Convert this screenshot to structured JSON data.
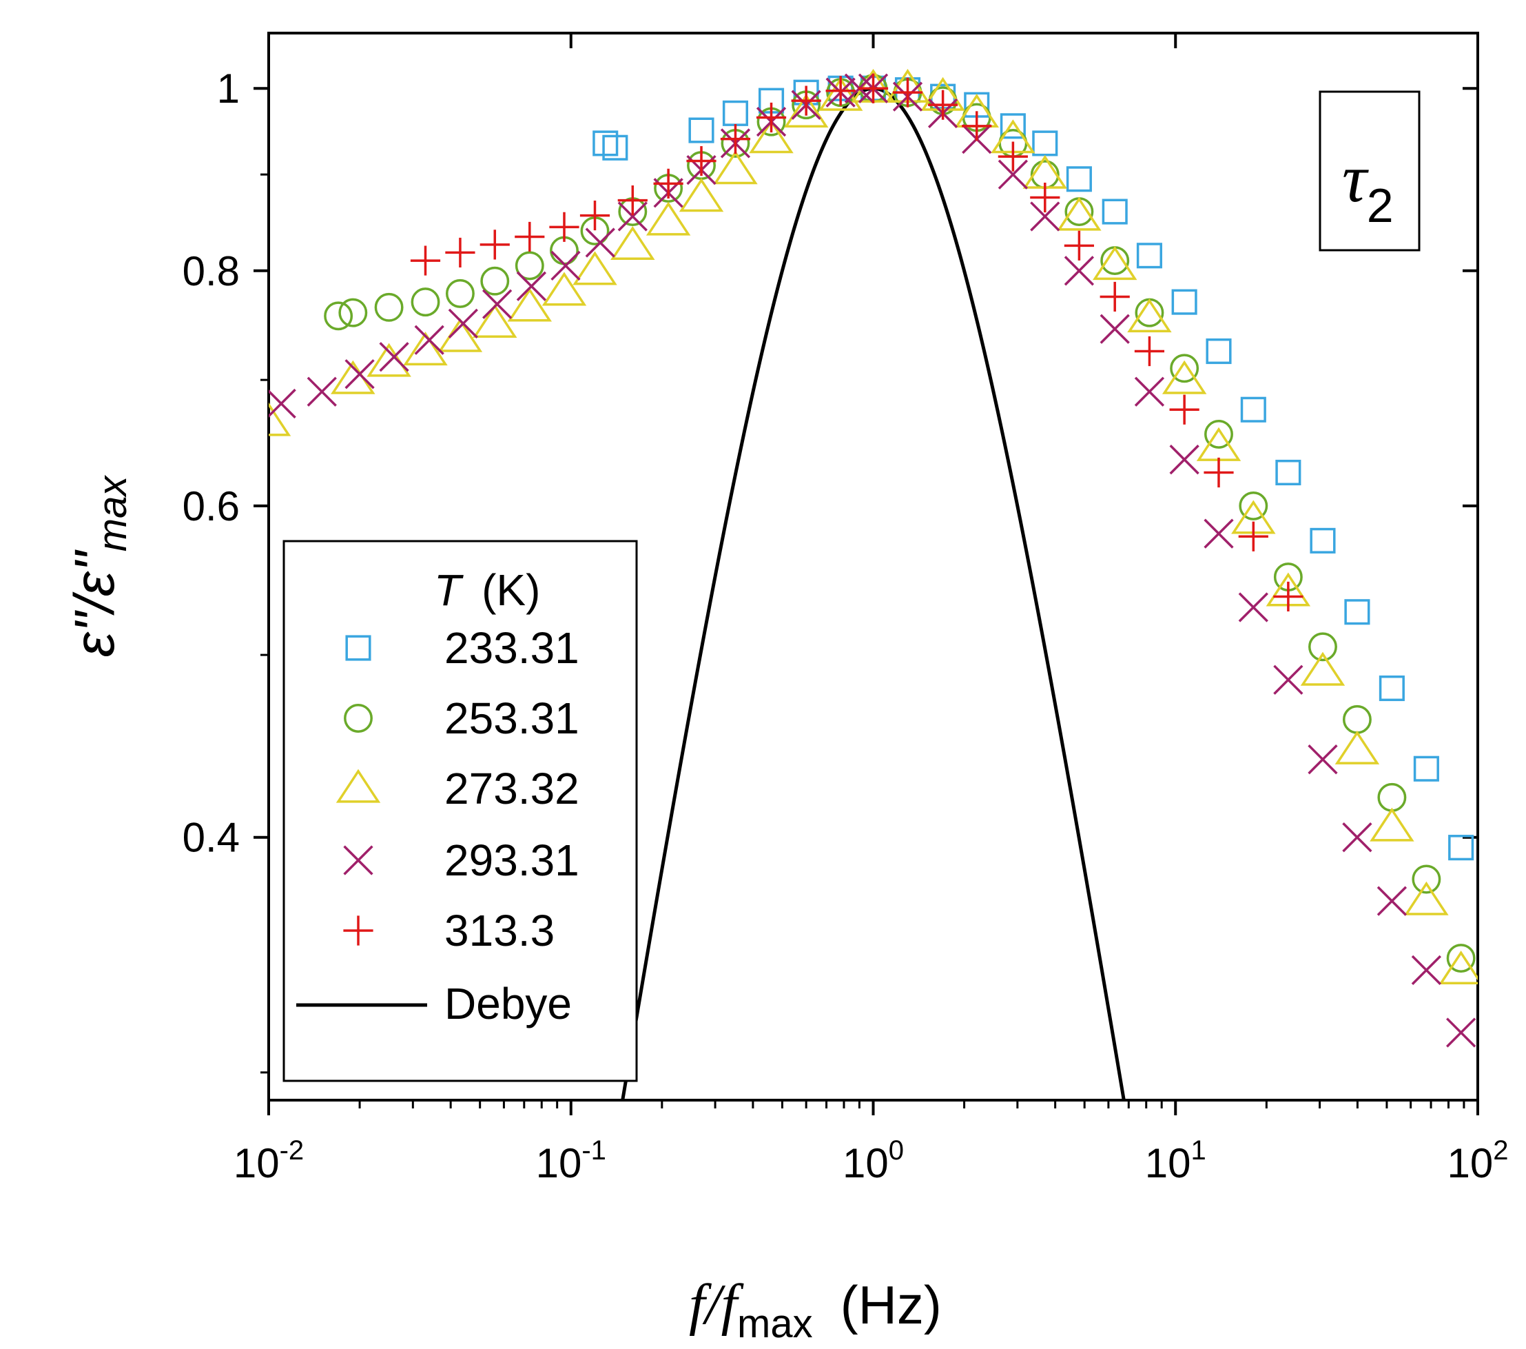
{
  "chart_data": {
    "type": "scatter",
    "title": "",
    "annotation": {
      "symbol": "τ",
      "subscript": "2"
    },
    "xlabel": {
      "main": "f/f",
      "subscript": "max",
      "unit": "(Hz)"
    },
    "ylabel": {
      "numerator": "ε\"",
      "denominator": "ε\"",
      "denominator_subscript": "max",
      "separator": "/"
    },
    "x_scale": "log",
    "y_scale": "log",
    "xlim": [
      0.01,
      100
    ],
    "ylim": [
      0.29,
      1.07
    ],
    "x_ticks": [
      {
        "value": 0.01,
        "base": "10",
        "exp": "-2"
      },
      {
        "value": 0.1,
        "base": "10",
        "exp": "-1"
      },
      {
        "value": 1,
        "base": "10",
        "exp": "0"
      },
      {
        "value": 10,
        "base": "10",
        "exp": "1"
      },
      {
        "value": 100,
        "base": "10",
        "exp": "2"
      }
    ],
    "y_ticks": [
      {
        "value": 0.4,
        "label": "0.4"
      },
      {
        "value": 0.6,
        "label": "0.6"
      },
      {
        "value": 0.8,
        "label": "0.8"
      },
      {
        "value": 1.0,
        "label": "1"
      }
    ],
    "legend": {
      "title_symbol": "T",
      "title_unit": "(K)",
      "position": "bottom-left"
    },
    "series": [
      {
        "name": "233.31",
        "marker": "square",
        "color": "#3aa6e0",
        "x": [
          0.13,
          0.14,
          0.27,
          0.35,
          0.46,
          0.6,
          0.78,
          1.0,
          1.3,
          1.7,
          2.2,
          2.9,
          3.7,
          4.8,
          6.3,
          8.2,
          10.7,
          13.9,
          18.1,
          23.6,
          30.7,
          39.9,
          52.0,
          67.6,
          88.0
        ],
        "y": [
          0.935,
          0.93,
          0.95,
          0.97,
          0.985,
          0.995,
          1.0,
          1.0,
          0.998,
          0.99,
          0.98,
          0.955,
          0.935,
          0.895,
          0.86,
          0.815,
          0.77,
          0.725,
          0.675,
          0.625,
          0.575,
          0.527,
          0.48,
          0.435,
          0.395
        ]
      },
      {
        "name": "253.31",
        "marker": "circle",
        "color": "#6aaa2a",
        "x": [
          0.017,
          0.019,
          0.025,
          0.033,
          0.043,
          0.056,
          0.073,
          0.095,
          0.12,
          0.16,
          0.21,
          0.27,
          0.35,
          0.46,
          0.6,
          0.78,
          1.0,
          1.3,
          1.7,
          2.2,
          2.9,
          3.7,
          4.8,
          6.3,
          8.2,
          10.7,
          13.9,
          18.1,
          23.6,
          30.7,
          39.9,
          52.0,
          67.6,
          88.0
        ],
        "y": [
          0.757,
          0.76,
          0.765,
          0.77,
          0.778,
          0.79,
          0.805,
          0.82,
          0.84,
          0.86,
          0.885,
          0.91,
          0.935,
          0.96,
          0.98,
          0.995,
          1.0,
          0.995,
          0.985,
          0.965,
          0.935,
          0.9,
          0.86,
          0.81,
          0.76,
          0.71,
          0.655,
          0.6,
          0.55,
          0.505,
          0.462,
          0.42,
          0.38,
          0.345
        ]
      },
      {
        "name": "273.32",
        "marker": "triangle",
        "color": "#e0d02a",
        "x": [
          0.01,
          0.019,
          0.025,
          0.033,
          0.043,
          0.056,
          0.073,
          0.095,
          0.12,
          0.16,
          0.21,
          0.27,
          0.35,
          0.46,
          0.6,
          0.78,
          1.0,
          1.3,
          1.7,
          2.2,
          2.9,
          3.7,
          4.8,
          6.3,
          8.2,
          10.7,
          13.9,
          18.1,
          23.6,
          30.7,
          39.9,
          52.0,
          67.6,
          88.0
        ],
        "y": [
          0.665,
          0.7,
          0.715,
          0.725,
          0.737,
          0.75,
          0.765,
          0.78,
          0.8,
          0.825,
          0.85,
          0.875,
          0.905,
          0.94,
          0.97,
          0.99,
          1.0,
          1.0,
          0.99,
          0.97,
          0.94,
          0.9,
          0.855,
          0.805,
          0.755,
          0.7,
          0.645,
          0.59,
          0.54,
          0.49,
          0.445,
          0.405,
          0.37,
          0.34
        ]
      },
      {
        "name": "293.31",
        "marker": "cross",
        "color": "#a0206a",
        "x": [
          0.011,
          0.015,
          0.02,
          0.026,
          0.034,
          0.044,
          0.057,
          0.074,
          0.096,
          0.125,
          0.16,
          0.21,
          0.27,
          0.35,
          0.46,
          0.6,
          0.78,
          0.9,
          1.0,
          1.3,
          1.7,
          2.2,
          2.9,
          3.7,
          4.8,
          6.3,
          8.2,
          10.7,
          13.9,
          18.1,
          23.6,
          30.7,
          39.9,
          52.0,
          67.6,
          88.0
        ],
        "y": [
          0.68,
          0.69,
          0.705,
          0.72,
          0.735,
          0.75,
          0.768,
          0.785,
          0.805,
          0.828,
          0.855,
          0.88,
          0.905,
          0.935,
          0.96,
          0.98,
          0.995,
          1.0,
          1.0,
          0.99,
          0.97,
          0.94,
          0.9,
          0.855,
          0.8,
          0.745,
          0.69,
          0.635,
          0.58,
          0.53,
          0.485,
          0.44,
          0.4,
          0.37,
          0.34,
          0.315
        ]
      },
      {
        "name": "313.3",
        "marker": "plus",
        "color": "#e01818",
        "x": [
          0.033,
          0.043,
          0.056,
          0.073,
          0.095,
          0.12,
          0.16,
          0.21,
          0.27,
          0.35,
          0.46,
          0.6,
          0.78,
          1.0,
          1.3,
          1.7,
          2.2,
          2.9,
          3.7,
          4.8,
          6.3,
          8.2,
          10.7,
          13.9,
          18.1,
          23.6
        ],
        "y": [
          0.81,
          0.818,
          0.826,
          0.834,
          0.844,
          0.856,
          0.872,
          0.89,
          0.915,
          0.94,
          0.965,
          0.985,
          0.997,
          1.0,
          0.995,
          0.98,
          0.955,
          0.92,
          0.875,
          0.825,
          0.775,
          0.725,
          0.675,
          0.625,
          0.578,
          0.537
        ]
      },
      {
        "name": "Debye",
        "marker": "line",
        "color": "#000000",
        "model": "debye"
      }
    ]
  }
}
